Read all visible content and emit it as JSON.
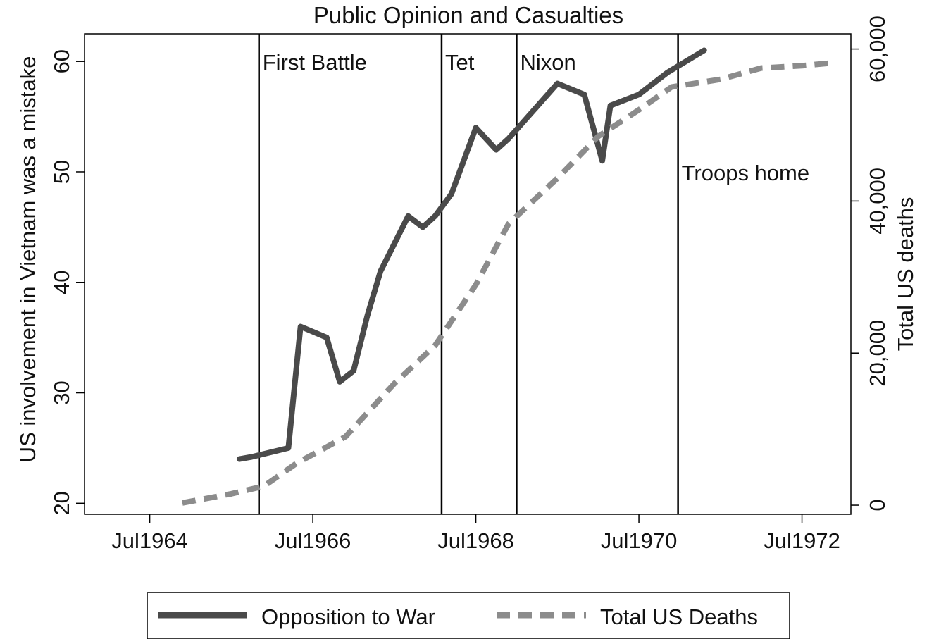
{
  "chart_data": {
    "type": "line",
    "title": "Public Opinion and Casualties",
    "xlabel": "",
    "ylabel_left": "US involvement in Vietnam was a mistake",
    "ylabel_right": "Total US deaths",
    "x_ticks": [
      "Jul1964",
      "Jul1966",
      "Jul1968",
      "Jul1970",
      "Jul1972"
    ],
    "x_tick_values": [
      1964.5,
      1966.5,
      1968.5,
      1970.5,
      1972.5
    ],
    "y_left_ticks": [
      "20",
      "30",
      "40",
      "50",
      "60"
    ],
    "y_left_tick_values": [
      20,
      30,
      40,
      50,
      60
    ],
    "y_right_ticks": [
      "0",
      "20,000",
      "40,000",
      "60,000"
    ],
    "y_right_tick_values": [
      0,
      20000,
      40000,
      60000
    ],
    "xlim": [
      1963.7,
      1973.1
    ],
    "ylim_left": [
      19,
      62.5
    ],
    "ylim_right": [
      -1200,
      62000
    ],
    "grid": false,
    "legend_position": "bottom",
    "series": [
      {
        "name": "Opposition to War",
        "axis": "left",
        "color": "#4a4a4a",
        "style": "solid",
        "x": [
          1965.6,
          1965.75,
          1966.2,
          1966.35,
          1966.67,
          1966.83,
          1967.0,
          1967.17,
          1967.33,
          1967.67,
          1967.85,
          1968.0,
          1968.2,
          1968.5,
          1968.75,
          1968.9,
          1969.5,
          1969.83,
          1970.05,
          1970.15,
          1970.5,
          1970.85,
          1971.3
        ],
        "y": [
          24,
          24.2,
          25,
          36,
          35,
          31,
          32,
          37,
          41,
          46,
          45,
          46,
          48,
          54,
          52,
          53,
          58,
          57,
          51,
          56,
          57,
          59,
          61
        ]
      },
      {
        "name": "Total US Deaths",
        "axis": "right",
        "color": "#8c8c8c",
        "style": "dashed",
        "x": [
          1964.9,
          1965.5,
          1965.9,
          1966.3,
          1966.9,
          1967.5,
          1968.0,
          1968.5,
          1968.9,
          1969.5,
          1970.0,
          1970.5,
          1970.9,
          1971.5,
          1972.0,
          1972.5,
          1972.9
        ],
        "y": [
          300,
          1500,
          2500,
          5500,
          9000,
          16000,
          21000,
          29000,
          37000,
          43000,
          48500,
          52000,
          55000,
          56000,
          57500,
          57800,
          58200
        ]
      }
    ],
    "events": [
      {
        "label": "First Battle",
        "x": 1965.84,
        "label_y": 60
      },
      {
        "label": "Tet",
        "x": 1968.08,
        "label_y": 60
      },
      {
        "label": "Nixon",
        "x": 1969.0,
        "label_y": 60
      },
      {
        "label": "Troops home",
        "x": 1970.98,
        "label_y": 50
      }
    ]
  }
}
